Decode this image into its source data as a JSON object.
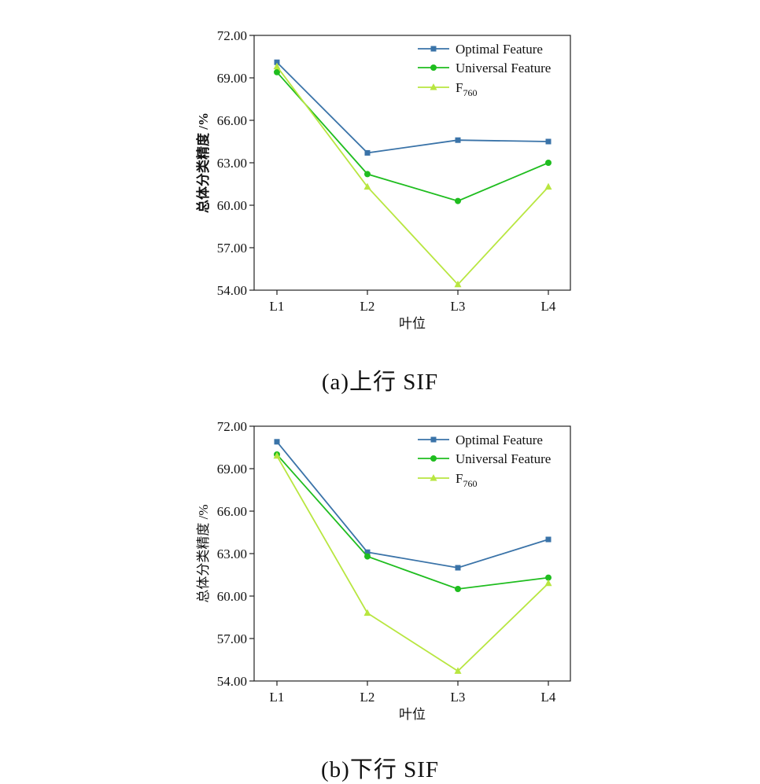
{
  "chart_data": [
    {
      "type": "line",
      "caption": "(a)上行 SIF",
      "xlabel": "叶位",
      "ylabel": "总体分类精度 /%",
      "ylabel_bold": true,
      "categories": [
        "L1",
        "L2",
        "L3",
        "L4"
      ],
      "ylim": [
        54.0,
        72.0
      ],
      "yticks": [
        "54.00",
        "57.00",
        "60.00",
        "63.00",
        "66.00",
        "69.00",
        "72.00"
      ],
      "legend_position": "top-right",
      "grid": false,
      "series": [
        {
          "name": "Optimal Feature",
          "marker": "square",
          "color": "#3a73a8",
          "values": [
            70.1,
            63.7,
            64.6,
            64.5
          ]
        },
        {
          "name": "Universal Feature",
          "marker": "circle",
          "color": "#1fbd1f",
          "values": [
            69.4,
            62.2,
            60.3,
            63.0
          ]
        },
        {
          "name_main": "F",
          "name_sub": "760",
          "marker": "triangle",
          "color": "#b8e640",
          "values": [
            69.8,
            61.3,
            54.4,
            61.3
          ]
        }
      ]
    },
    {
      "type": "line",
      "caption": "(b)下行 SIF",
      "xlabel": "叶位",
      "ylabel": "总体分类精度 /%",
      "ylabel_bold": false,
      "categories": [
        "L1",
        "L2",
        "L3",
        "L4"
      ],
      "ylim": [
        54.0,
        72.0
      ],
      "yticks": [
        "54.00",
        "57.00",
        "60.00",
        "63.00",
        "66.00",
        "69.00",
        "72.00"
      ],
      "legend_position": "top-right",
      "grid": false,
      "series": [
        {
          "name": "Optimal Feature",
          "marker": "square",
          "color": "#3a73a8",
          "values": [
            70.9,
            63.1,
            62.0,
            64.0
          ]
        },
        {
          "name": "Universal Feature",
          "marker": "circle",
          "color": "#1fbd1f",
          "values": [
            70.0,
            62.8,
            60.5,
            61.3
          ]
        },
        {
          "name_main": "F",
          "name_sub": "760",
          "marker": "triangle",
          "color": "#b8e640",
          "values": [
            69.9,
            58.8,
            54.7,
            60.9
          ]
        }
      ]
    }
  ]
}
